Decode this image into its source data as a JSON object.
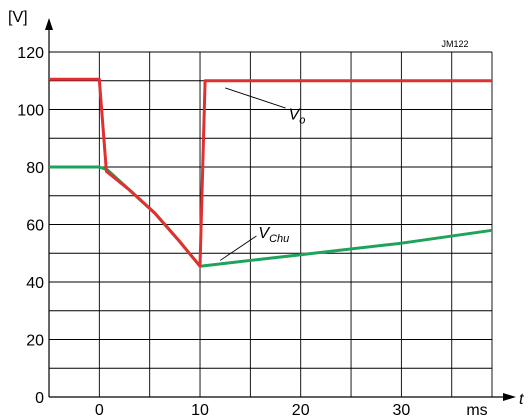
{
  "chart_data": {
    "type": "line",
    "title": "",
    "ylabel": "[V]",
    "xlabel": "t",
    "x_unit": "ms",
    "reference": "JM122",
    "xlim": [
      -5,
      39
    ],
    "ylim": [
      0,
      120
    ],
    "x_ticks": [
      0,
      10,
      20,
      30
    ],
    "y_ticks": [
      0,
      20,
      40,
      60,
      80,
      100,
      120
    ],
    "grid": true,
    "series": [
      {
        "name_base": "V",
        "name_sub": "Chu",
        "color": "#1fa35a",
        "points": [
          [
            -5,
            80
          ],
          [
            0,
            80
          ],
          [
            0.8,
            79
          ],
          [
            3,
            72
          ],
          [
            5.5,
            64
          ],
          [
            8,
            54
          ],
          [
            10,
            45.5
          ],
          [
            20,
            49.5
          ],
          [
            30,
            53.5
          ],
          [
            39,
            58
          ]
        ]
      },
      {
        "name_base": "V",
        "name_sub": "o",
        "color": "#e03030",
        "points": [
          [
            -5,
            110.5
          ],
          [
            0,
            110.5
          ],
          [
            0.7,
            78.5
          ],
          [
            3,
            72
          ],
          [
            5.5,
            64
          ],
          [
            8,
            54
          ],
          [
            10,
            45.5
          ],
          [
            10.5,
            110
          ],
          [
            39,
            110
          ]
        ]
      }
    ]
  }
}
